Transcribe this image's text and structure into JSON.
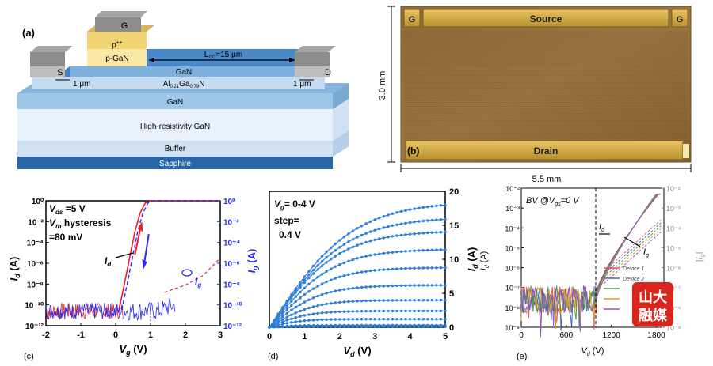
{
  "panel_a": {
    "label": "(a)",
    "gate": "G",
    "p_pp": "p",
    "p_pp_sup": "++",
    "p_gan": "p-GaN",
    "source": "S",
    "drain": "D",
    "lgd": "L",
    "lgd_sub": "GD",
    "lgd_val": "=15 μm",
    "gan_top": "GaN",
    "algan": "Al",
    "algan_sub1": "0.21",
    "algan_mid": "Ga",
    "algan_sub2": "0.79",
    "algan_end": "N",
    "dim_left": "1 μm",
    "dim_right": "1 μm",
    "gan": "GaN",
    "hr_gan": "High-resistivity GaN",
    "buffer": "Buffer",
    "sapphire": "Sapphire"
  },
  "panel_b": {
    "label": "(b)",
    "source": "Source",
    "drain": "Drain",
    "g_left": "G",
    "g_right": "G",
    "height": "3.0 mm",
    "width": "5.5 mm"
  },
  "panel_c": {
    "label": "(c)",
    "vds_text": "V",
    "vds_sub": "ds",
    "vds_val": " =5 V",
    "vth_text": "V",
    "vth_sub": "th",
    "vth_val": " hysteresis",
    "hyst_val": "=80 mV",
    "id_lbl": "I",
    "id_sub": "d",
    "ig_lbl": "I",
    "ig_sub": "g",
    "ylabel_left": "I",
    "ylabel_left_sub": "d",
    "ylabel_left_unit": " (A)",
    "ylabel_right": "I",
    "ylabel_right_sub": "g",
    "ylabel_right_unit": " (A)",
    "xlabel": "V",
    "xlabel_sub": "g",
    "xlabel_unit": " (V)",
    "xticks": [
      "-2",
      "-1",
      "0",
      "1",
      "2",
      "3"
    ],
    "yticks_left": [
      "10⁰",
      "10⁻²",
      "10⁻⁴",
      "10⁻⁶",
      "10⁻⁸",
      "10⁻¹⁰",
      "10⁻¹²"
    ],
    "yticks_right": [
      "10⁰",
      "10⁻²",
      "10⁻⁴",
      "10⁻⁶",
      "10⁻⁸",
      "10⁻¹⁰",
      "10⁻¹²"
    ],
    "colors": {
      "red": "#e8202a",
      "blue": "#2a2af0",
      "pink": "#d0306a"
    }
  },
  "panel_d": {
    "label": "(d)",
    "ann1_a": "V",
    "ann1_sub": "g",
    "ann1_b": "= 0-4 V",
    "ann2": "step=",
    "ann3": "0.4 V",
    "ylabel": "I",
    "ylabel_sub": "d",
    "ylabel_unit": " (A)",
    "xlabel": "V",
    "xlabel_sub": "d",
    "xlabel_unit": " (V)",
    "xticks": [
      "0",
      "1",
      "2",
      "3",
      "4",
      "5"
    ],
    "yticks": [
      "0",
      "5",
      "10",
      "15",
      "20"
    ],
    "color": "#2f7fd8"
  },
  "panel_e": {
    "label": "(e)",
    "bv_a": "BV @V",
    "bv_sub": "gs",
    "bv_b": "=0 V",
    "id_lbl": "I",
    "id_sub": "d",
    "ig_lbl": "I",
    "ig_sub": "g",
    "ylabel_left": "I",
    "ylabel_left_sub": "d",
    "ylabel_left_unit": " (A)",
    "ylabel_right": "|I",
    "ylabel_right_sub": "g",
    "ylabel_right_unit": "|",
    "xlabel": "V",
    "xlabel_sub": "d",
    "xlabel_unit": " (V)",
    "xticks": [
      "0",
      "600",
      "1200",
      "1800"
    ],
    "yticks_left": [
      "10⁻²",
      "10⁻³",
      "10⁻⁴",
      "10⁻⁵",
      "10⁻⁶",
      "10⁻⁷",
      "10⁻⁸",
      "10⁻⁹"
    ],
    "yticks_right": [
      "10⁻²",
      "10⁻³",
      "10⁻⁴",
      "10⁻⁵",
      "10⁻⁶",
      "10⁻⁷",
      "10⁻⁸",
      "10⁻⁹"
    ],
    "legend": [
      "Device 1",
      "Device 2"
    ],
    "watermark_line1": "山大",
    "watermark_line2": "融媒"
  },
  "chart_data": [
    {
      "type": "line",
      "panel": "c",
      "xlim": [
        -2,
        3
      ],
      "ylim_log": [
        -12,
        0
      ],
      "series": [
        {
          "name": "I_d",
          "x": [
            -2,
            -1,
            0,
            0.2,
            0.4,
            0.6,
            0.8,
            1.0,
            2,
            3
          ],
          "y_log10": [
            -10.5,
            -10.6,
            -10.7,
            -10.2,
            -7,
            -3.5,
            -1,
            0,
            0,
            0
          ]
        },
        {
          "name": "I_g",
          "x": [
            -2,
            -1,
            0,
            1,
            1.5,
            2,
            2.5,
            3
          ],
          "y_log10": [
            -10.6,
            -10.6,
            -10.8,
            -10.4,
            -8.8,
            -8.1,
            -7.2,
            -5.5
          ]
        }
      ]
    },
    {
      "type": "line",
      "panel": "d",
      "xlim": [
        0,
        5
      ],
      "ylim": [
        0,
        20
      ],
      "series_vg": [
        0,
        0.4,
        0.8,
        1.2,
        1.6,
        2.0,
        2.4,
        2.8,
        3.2,
        3.6,
        4.0
      ],
      "saturation_A": [
        0.1,
        0.3,
        1.2,
        2.4,
        4.0,
        6.2,
        8.8,
        11.5,
        14.2,
        16.2,
        18.5
      ]
    },
    {
      "type": "line",
      "panel": "e",
      "xlim": [
        0,
        1900
      ],
      "ylim_log": [
        -9,
        -2
      ],
      "series": [
        {
          "name": "Device 1",
          "x": [
            0,
            600,
            900,
            1200,
            1500,
            1800
          ],
          "y_log10": [
            -7.5,
            -7.4,
            -6.8,
            -5,
            -3.3,
            -2.5
          ]
        },
        {
          "name": "Device 2",
          "x": [
            0,
            600,
            900,
            1200,
            1500,
            1800
          ],
          "y_log10": [
            -7.6,
            -7.5,
            -6.9,
            -5.2,
            -3.5,
            -2.7
          ]
        }
      ]
    }
  ]
}
